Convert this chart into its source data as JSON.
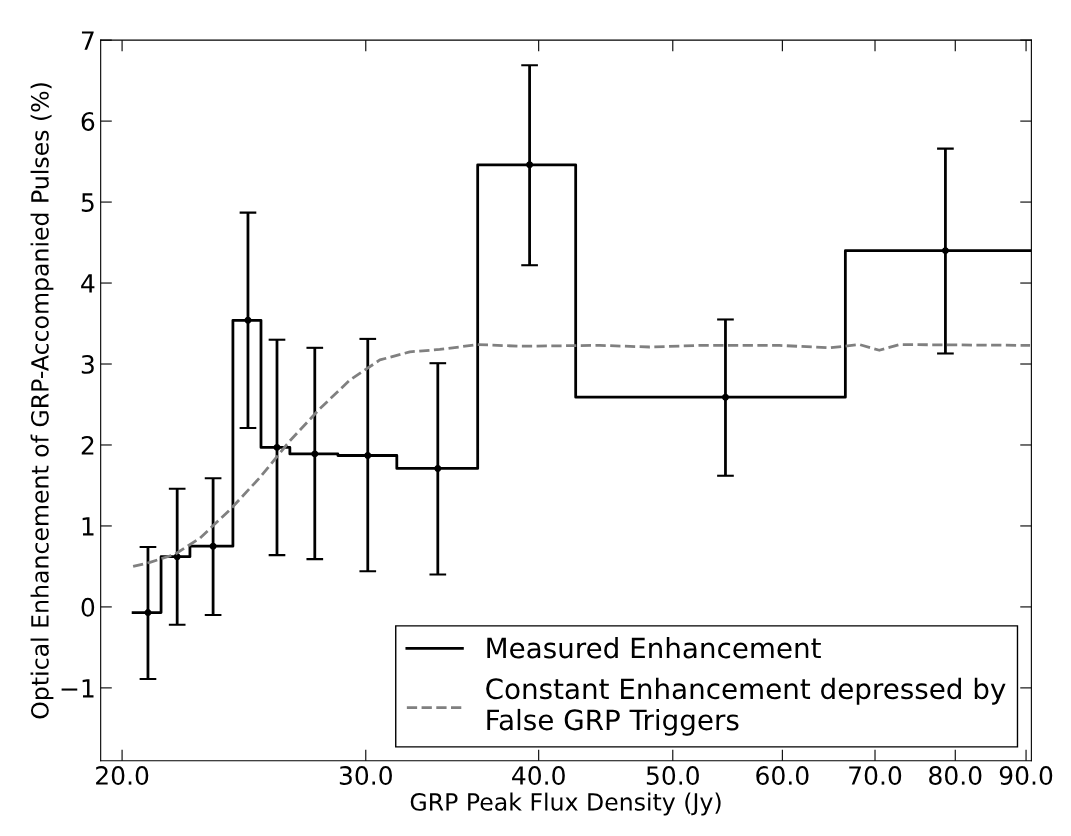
{
  "chart_data": {
    "type": "step",
    "xlabel": "GRP Peak Flux Density (Jy)",
    "ylabel": "Optical Enhancement of GRP-Accompanied Pulses (%)",
    "log": "x",
    "xlim": [
      19.3,
      90.8
    ],
    "xticks": [
      {
        "value": 20,
        "label": "20.0"
      },
      {
        "value": 30,
        "label": "30.0"
      },
      {
        "value": 40,
        "label": "40.0"
      },
      {
        "value": 50,
        "label": "50.0"
      },
      {
        "value": 60,
        "label": "60.0"
      },
      {
        "value": 70,
        "label": "70.0"
      },
      {
        "value": 80,
        "label": "80.0"
      },
      {
        "value": 90,
        "label": "90.0"
      }
    ],
    "ylim": [
      -1.9,
      7
    ],
    "yticks": [
      {
        "value": -1,
        "label": "−1"
      },
      0,
      1,
      2,
      3,
      4,
      5,
      6,
      7
    ],
    "grid": false,
    "legend": "bottom right",
    "series": [
      {
        "name": "Measured Enhancement",
        "color": "#000000",
        "line_style": "solid",
        "marker": "none",
        "x": [
          20.37,
          21.34,
          22.39,
          24.05,
          25.2,
          26.44,
          28.64,
          31.59,
          36.14,
          42.54,
          66.63,
          90.6
        ],
        "values": [
          -0.07,
          0.62,
          0.75,
          3.54,
          1.97,
          1.89,
          1.87,
          1.71,
          5.46,
          2.59,
          4.4,
          4.4
        ]
      },
      {
        "type": "scatter",
        "color": "#000000",
        "marker": "circle",
        "x": [
          20.88,
          21.92,
          23.27,
          24.66,
          25.88,
          27.56,
          30.1,
          33.82,
          39.4,
          54.58,
          78.7
        ],
        "values": [
          -0.07,
          0.62,
          0.75,
          3.54,
          1.97,
          1.89,
          1.87,
          1.71,
          5.46,
          2.59,
          4.4
        ],
        "errors": [
          [
            -0.89,
            0.74
          ],
          [
            -0.22,
            1.46
          ],
          [
            -0.1,
            1.59
          ],
          [
            2.21,
            4.87
          ],
          [
            0.64,
            3.3
          ],
          [
            0.59,
            3.2
          ],
          [
            0.44,
            3.31
          ],
          [
            0.4,
            3.01
          ],
          [
            4.22,
            6.69
          ],
          [
            1.62,
            3.55
          ],
          [
            3.13,
            5.66
          ]
        ]
      },
      {
        "type": "line",
        "name": "Constant Enhancement depressed by\nFalse GRP Triggers",
        "color": "#808080",
        "line_style": "dashed",
        "marker": "none",
        "x": [
          20.37,
          20.95,
          21.84,
          22.77,
          23.93,
          25.16,
          26.44,
          27.8,
          29.21,
          30.71,
          32.28,
          33.93,
          36.14,
          38.76,
          44.27,
          48.1,
          52.28,
          59.71,
          64.89,
          68.21,
          70.5,
          72.9,
          90.6
        ],
        "values": [
          0.5,
          0.55,
          0.65,
          0.85,
          1.2,
          1.6,
          2.05,
          2.45,
          2.8,
          3.05,
          3.15,
          3.18,
          3.24,
          3.22,
          3.23,
          3.21,
          3.23,
          3.23,
          3.2,
          3.24,
          3.17,
          3.24,
          3.23
        ]
      }
    ]
  }
}
